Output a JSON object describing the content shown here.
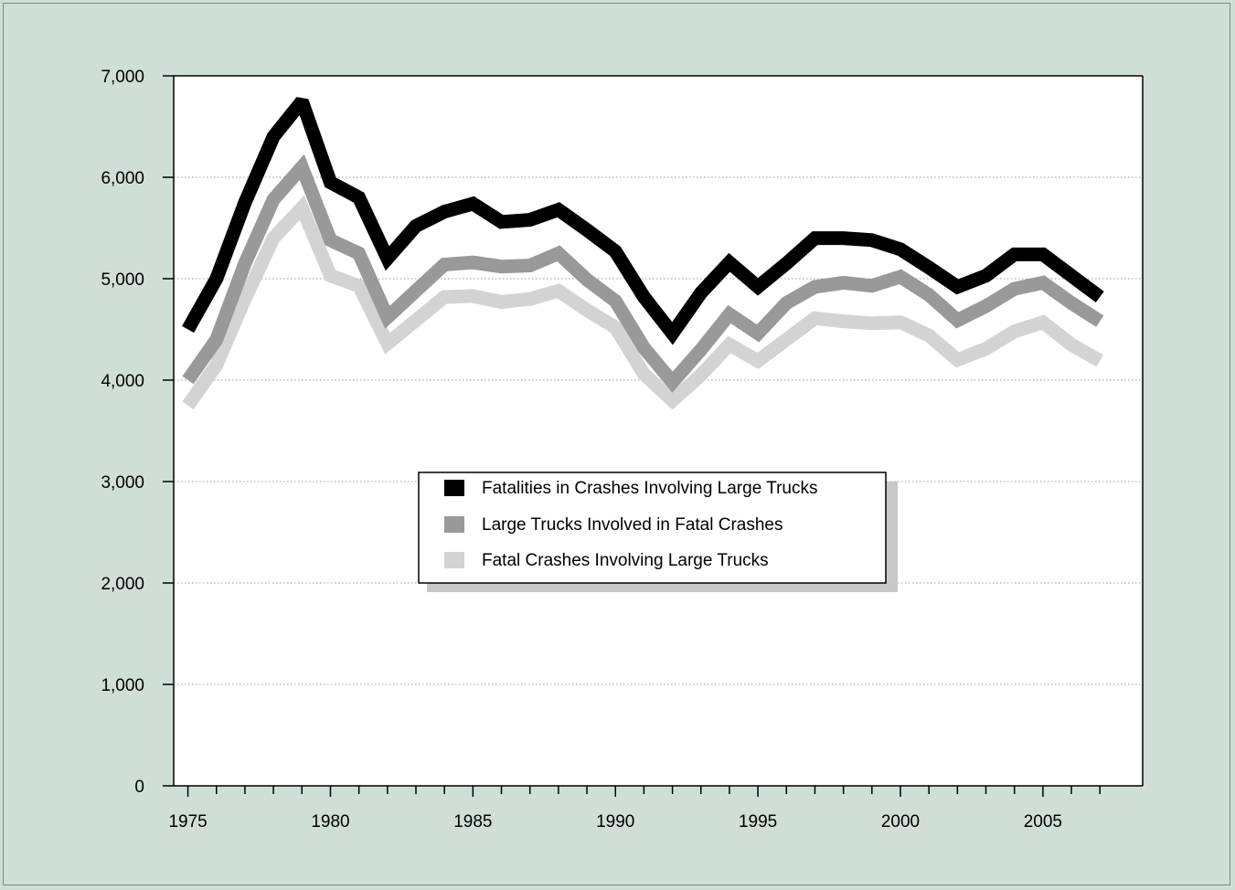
{
  "chart_data": {
    "type": "line",
    "title": "",
    "xlabel": "",
    "ylabel": "",
    "x": [
      1975,
      1976,
      1977,
      1978,
      1979,
      1980,
      1981,
      1982,
      1983,
      1984,
      1985,
      1986,
      1987,
      1988,
      1989,
      1990,
      1991,
      1992,
      1993,
      1994,
      1995,
      1996,
      1997,
      1998,
      1999,
      2000,
      2001,
      2002,
      2003,
      2004,
      2005,
      2006,
      2007
    ],
    "xlim": [
      1974.5,
      2008.5
    ],
    "ylim": [
      0,
      7000
    ],
    "x_ticks": [
      1975,
      1980,
      1985,
      1990,
      1995,
      2000,
      2005
    ],
    "x_tick_labels": [
      "1975",
      "1980",
      "1985",
      "1990",
      "1995",
      "2000",
      "2005"
    ],
    "y_ticks": [
      0,
      1000,
      2000,
      3000,
      4000,
      5000,
      6000,
      7000
    ],
    "y_tick_labels": [
      "0",
      "1,000",
      "2,000",
      "3,000",
      "4,000",
      "5,000",
      "6,000",
      "7,000"
    ],
    "grid": "horizontal dotted",
    "legend_position": "center",
    "series": [
      {
        "name": "Fatalities in Crashes Involving Large Trucks",
        "color": "#000000",
        "values": [
          4500,
          5000,
          5750,
          6400,
          6750,
          5950,
          5800,
          5200,
          5520,
          5660,
          5740,
          5560,
          5580,
          5680,
          5480,
          5270,
          4820,
          4460,
          4860,
          5160,
          4920,
          5150,
          5400,
          5400,
          5380,
          5290,
          5110,
          4920,
          5030,
          5240,
          5240,
          5030,
          4820
        ]
      },
      {
        "name": "Large Trucks Involved in Fatal Crashes",
        "color": "#999999",
        "values": [
          4000,
          4400,
          5150,
          5780,
          6100,
          5380,
          5250,
          4620,
          4880,
          5140,
          5160,
          5120,
          5130,
          5250,
          4990,
          4780,
          4320,
          3980,
          4300,
          4650,
          4460,
          4760,
          4920,
          4960,
          4930,
          5020,
          4840,
          4590,
          4730,
          4900,
          4960,
          4760,
          4580
        ]
      },
      {
        "name": "Fatal Crashes Involving Large Trucks",
        "color": "#d3d3d3",
        "values": [
          3750,
          4150,
          4800,
          5400,
          5700,
          5030,
          4930,
          4360,
          4590,
          4820,
          4830,
          4770,
          4800,
          4880,
          4690,
          4520,
          4060,
          3800,
          4050,
          4350,
          4190,
          4400,
          4610,
          4580,
          4560,
          4570,
          4440,
          4200,
          4310,
          4480,
          4570,
          4350,
          4190
        ]
      }
    ]
  },
  "legend": {
    "items": [
      {
        "label": "Fatalities in Crashes Involving Large Trucks",
        "color": "#000000"
      },
      {
        "label": "Large Trucks Involved in Fatal Crashes",
        "color": "#999999"
      },
      {
        "label": "Fatal Crashes Involving Large Trucks",
        "color": "#d3d3d3"
      }
    ],
    "shadow_color": "#c8c8c8"
  },
  "colors": {
    "background": "#cfdfd8",
    "plot_background": "#ffffff",
    "grid": "#999999"
  }
}
